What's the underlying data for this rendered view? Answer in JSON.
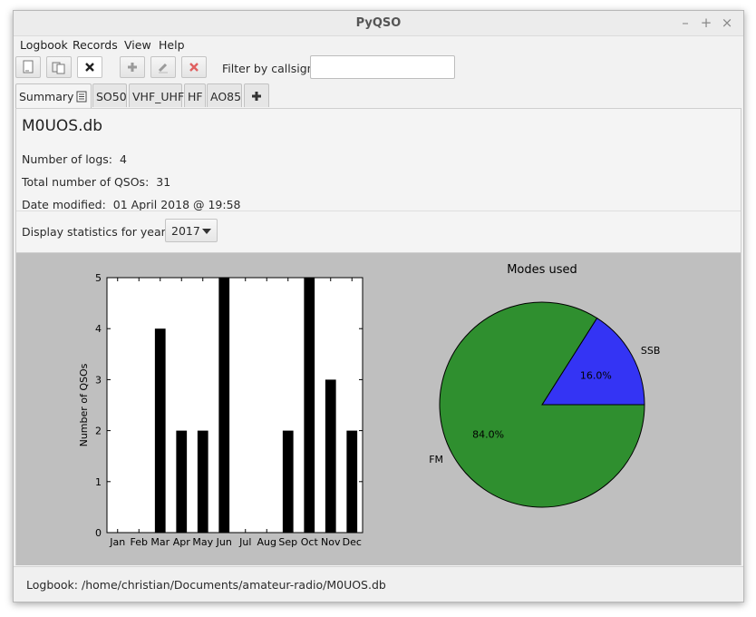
{
  "window": {
    "title": "PyQSO"
  },
  "menu": [
    "Logbook",
    "Records",
    "View",
    "Help"
  ],
  "toolbar": {
    "filter_label": "Filter by callsign:",
    "filter_value": ""
  },
  "tabs": [
    {
      "label": "Summary",
      "selected": true
    },
    {
      "label": "SO50"
    },
    {
      "label": "VHF_UHF"
    },
    {
      "label": "HF"
    },
    {
      "label": "AO85"
    }
  ],
  "summary": {
    "db_name": "M0UOS.db",
    "logs_label": "Number of logs:",
    "logs_value": "4",
    "qsos_label": "Total number of QSOs:",
    "qsos_value": "31",
    "modified_label": "Date modified:",
    "modified_value": "01 April 2018 @ 19:58",
    "year_label": "Display statistics for year:",
    "year_value": "2017"
  },
  "status": {
    "text": "Logbook: /home/christian/Documents/amateur-radio/M0UOS.db"
  },
  "chart_data": [
    {
      "type": "bar",
      "categories": [
        "Jan",
        "Feb",
        "Mar",
        "Apr",
        "May",
        "Jun",
        "Jul",
        "Aug",
        "Sep",
        "Oct",
        "Nov",
        "Dec"
      ],
      "values": [
        0,
        0,
        4,
        2,
        2,
        5,
        0,
        0,
        2,
        5,
        3,
        2
      ],
      "title": "",
      "xlabel": "",
      "ylabel": "Number of QSOs",
      "ylim": [
        0,
        5
      ],
      "yticks": [
        0,
        1,
        2,
        3,
        4,
        5
      ],
      "bar_color": "#000000",
      "grid": false
    },
    {
      "type": "pie",
      "title": "Modes used",
      "slices": [
        {
          "label": "SSB",
          "value": 16.0,
          "pct_label": "16.0%",
          "color": "#3434f4"
        },
        {
          "label": "FM",
          "value": 84.0,
          "pct_label": "84.0%",
          "color": "#2f8f2f"
        }
      ]
    }
  ]
}
